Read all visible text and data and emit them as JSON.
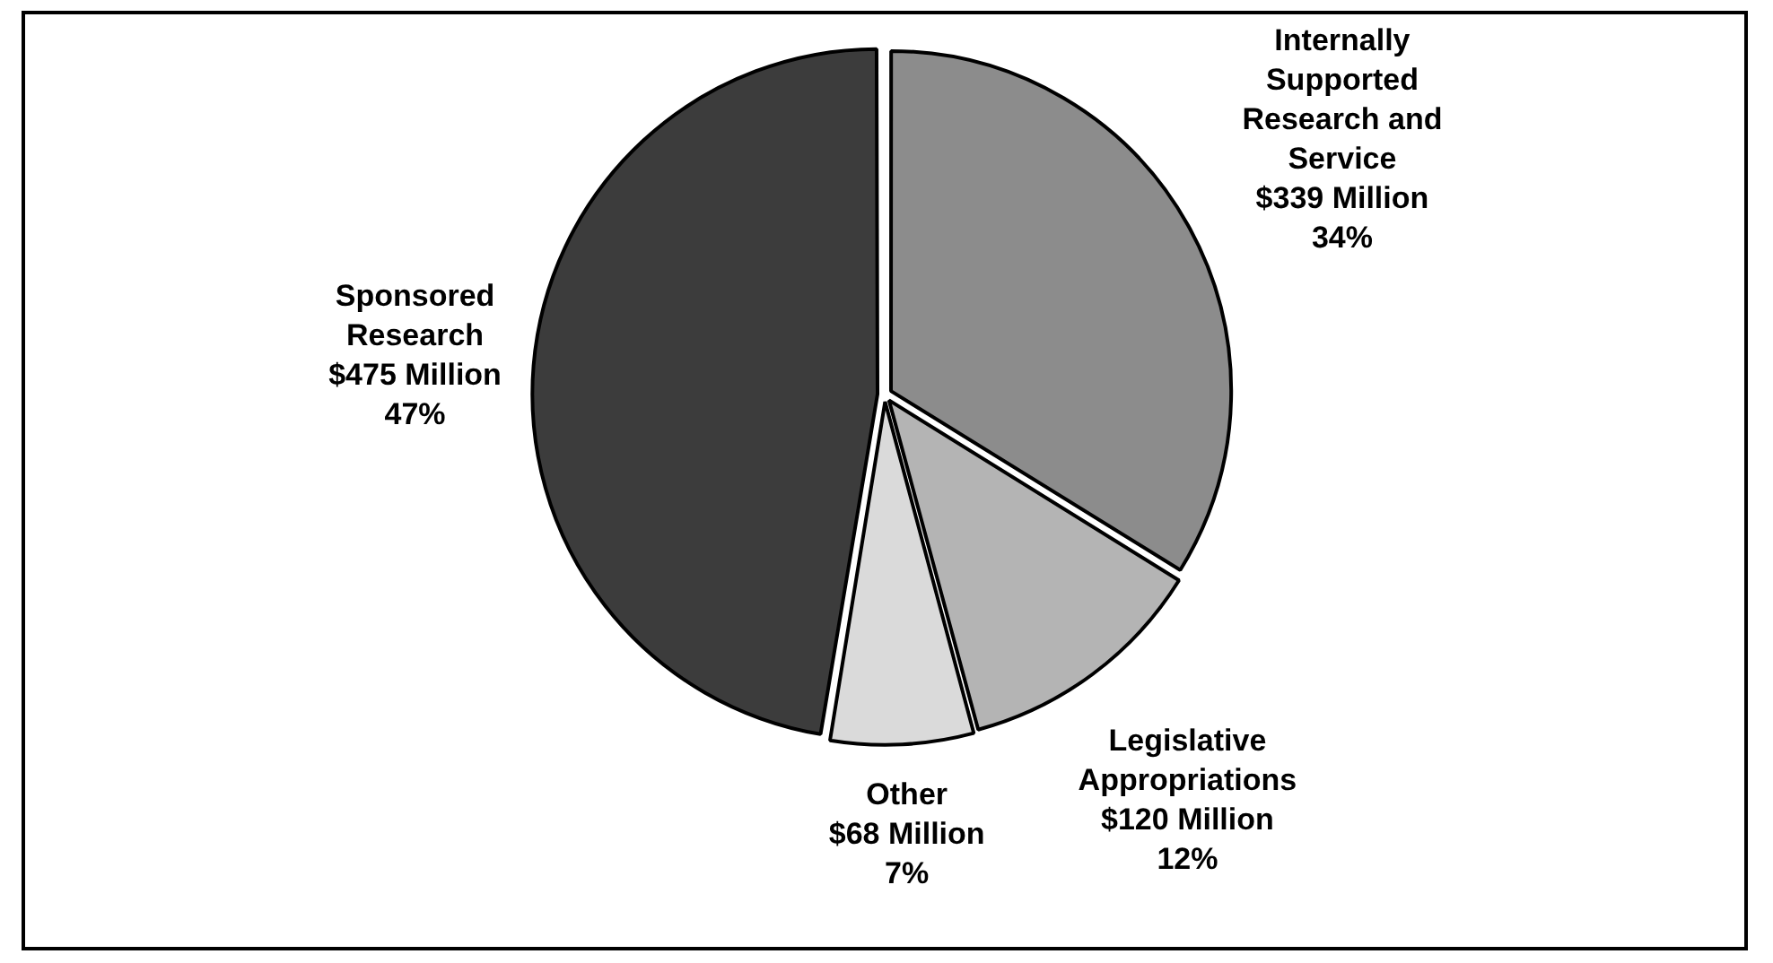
{
  "chart_data": {
    "type": "pie",
    "categories": [
      "Internally Supported Research and Service",
      "Legislative Appropriations",
      "Other",
      "Sponsored Research"
    ],
    "values": [
      339,
      120,
      68,
      475
    ],
    "value_labels": [
      "$339 Million\n34%",
      "$120 Million\n12%",
      "$68 Million\n7%",
      "$475 Million\n47%"
    ],
    "colors": [
      "#8c8c8c",
      "#b4b4b4",
      "#dadada",
      "#3c3c3c"
    ],
    "legend": false
  }
}
